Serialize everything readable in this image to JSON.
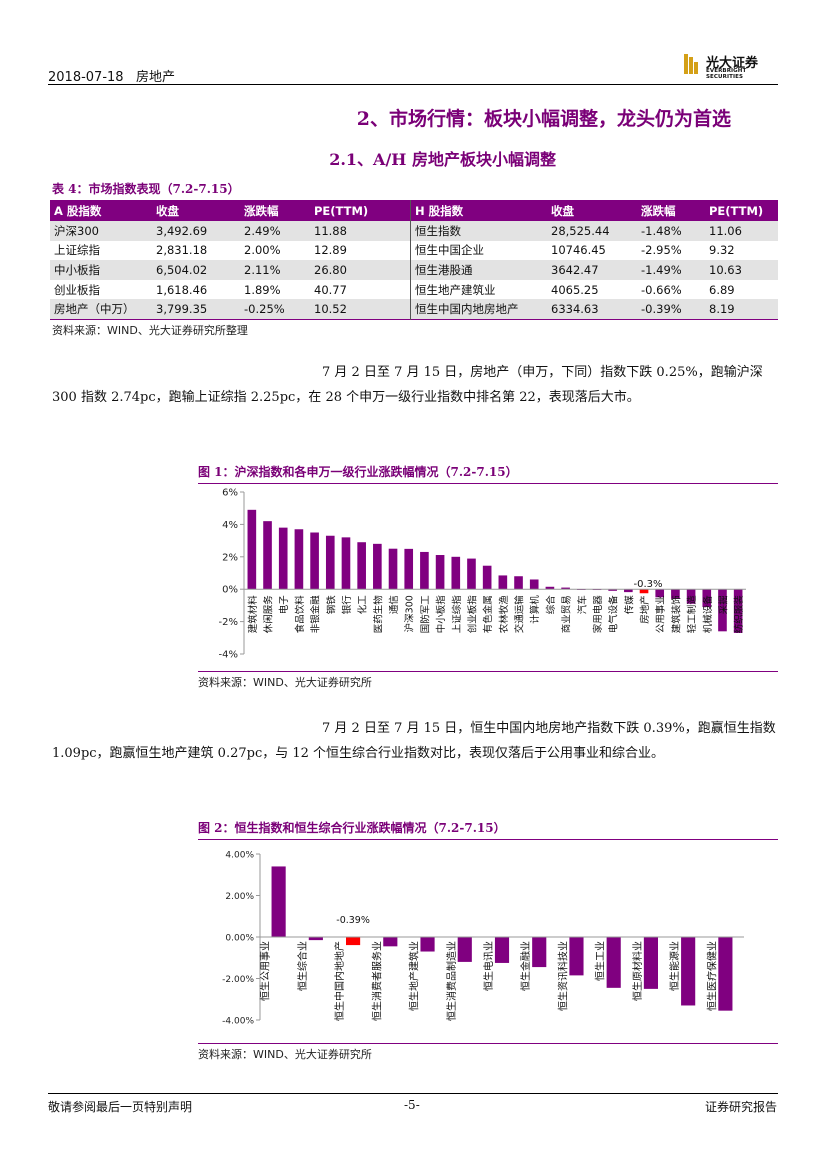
{
  "header": {
    "date": "2018-07-18",
    "sector": "房地产"
  },
  "logo": {
    "name_cn": "光大证券",
    "name_en": "EVERBRIGHT SECURITIES"
  },
  "section_title": "2、市场行情：板块小幅调整，龙头仍为首选",
  "subsection_title": "2.1、A/H 房地产板块小幅调整",
  "table4": {
    "caption": "表 4：市场指数表现（7.2-7.15）",
    "headers": [
      "A 股指数",
      "收盘",
      "涨跌幅",
      "PE(TTM)",
      "H 股指数",
      "收盘",
      "涨跌幅",
      "PE(TTM)"
    ],
    "rows": [
      [
        "沪深300",
        "3,492.69",
        "2.49%",
        "11.88",
        "恒生指数",
        "28,525.44",
        "-1.48%",
        "11.06"
      ],
      [
        "上证综指",
        "2,831.18",
        "2.00%",
        "12.89",
        "恒生中国企业",
        "10746.45",
        "-2.95%",
        "9.32"
      ],
      [
        "中小板指",
        "6,504.02",
        "2.11%",
        "26.80",
        "恒生港股通",
        "3642.47",
        "-1.49%",
        "10.63"
      ],
      [
        "创业板指",
        "1,618.46",
        "1.89%",
        "40.77",
        "恒生地产建筑业",
        "4065.25",
        "-0.66%",
        "6.89"
      ],
      [
        "房地产（中万）",
        "3,799.35",
        "-0.25%",
        "10.52",
        "恒生中国内地房地产",
        "6334.63",
        "-0.39%",
        "8.19"
      ]
    ],
    "source": "资料来源：WIND、光大证券研究所整理"
  },
  "para1": "7 月 2 日至 7 月 15 日，房地产（申万，下同）指数下跌 0.25%，跑输沪深 300 指数 2.74pc，跑输上证综指 2.25pc，在 28 个申万一级行业指数中排名第 22，表现落后大市。",
  "fig1": {
    "caption": "图 1：沪深指数和各申万一级行业涨跌幅情况（7.2-7.15）",
    "source": "资料来源：WIND、光大证券研究所",
    "highlight_label": "-0.3%"
  },
  "para2": "7 月 2 日至 7 月 15 日，恒生中国内地房地产指数下跌 0.39%，跑赢恒生指数 1.09pc，跑赢恒生地产建筑 0.27pc，与 12 个恒生综合行业指数对比，表现仅落后于公用事业和综合业。",
  "fig2": {
    "caption": "图 2：恒生指数和恒生综合行业涨跌幅情况（7.2-7.15）",
    "source": "资料来源：WIND、光大证券研究所",
    "highlight_label": "-0.39%"
  },
  "footer": {
    "left": "敬请参阅最后一页特别声明",
    "page": "-5-",
    "right": "证券研究报告"
  },
  "colors": {
    "accent": "#800080",
    "highlight": "#ff0000"
  },
  "chart_data": [
    {
      "type": "bar",
      "ylim": [
        -4,
        6
      ],
      "yticks": [
        "6%",
        "4%",
        "2%",
        "0%",
        "-2%",
        "-4%"
      ],
      "categories": [
        "建筑材料",
        "休闲服务",
        "电子",
        "食品饮料",
        "非银金融",
        "钢铁",
        "银行",
        "化工",
        "医药生物",
        "通信",
        "沪深300",
        "国防军工",
        "中小板指",
        "上证综指",
        "创业板指",
        "有色金属",
        "农林牧渔",
        "交通运输",
        "计算机",
        "综合",
        "商业贸易",
        "汽车",
        "家用电器",
        "电气设备",
        "传媒",
        "房地产",
        "公用事业",
        "建筑装饰",
        "轻工制造",
        "机械设备",
        "采掘",
        "纺织服装"
      ],
      "values": [
        4.9,
        4.2,
        3.8,
        3.7,
        3.5,
        3.3,
        3.2,
        2.9,
        2.8,
        2.5,
        2.49,
        2.3,
        2.11,
        2.0,
        1.89,
        1.45,
        0.85,
        0.8,
        0.6,
        0.15,
        0.1,
        -0.02,
        -0.05,
        -0.1,
        -0.18,
        -0.25,
        -0.5,
        -0.6,
        -0.9,
        -1.1,
        -2.6,
        -2.7
      ],
      "highlight_index": 25
    },
    {
      "type": "bar",
      "ylim": [
        -4,
        4
      ],
      "yticks": [
        "4.00%",
        "2.00%",
        "0.00%",
        "-2.00%",
        "-4.00%"
      ],
      "categories": [
        "恒生公用事业",
        "恒生综合业",
        "恒生中国内地地产",
        "恒生消费者服务业",
        "恒生地产建筑业",
        "恒生消费品制造业",
        "恒生电讯业",
        "恒生金融业",
        "恒生资讯科技业",
        "恒生工业",
        "恒生原材料业",
        "恒生能源业",
        "恒生医疗保健业"
      ],
      "values": [
        3.4,
        -0.15,
        -0.39,
        -0.45,
        -0.7,
        -1.2,
        -1.25,
        -1.45,
        -1.85,
        -2.45,
        -2.5,
        -3.3,
        -3.55
      ],
      "highlight_index": 2
    }
  ]
}
